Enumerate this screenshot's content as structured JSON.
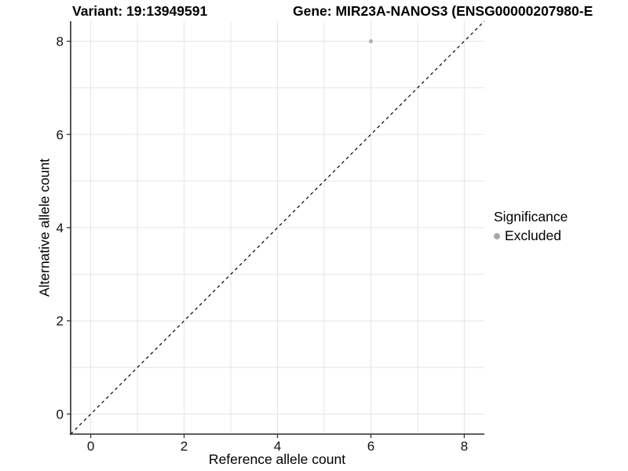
{
  "chart_data": {
    "type": "scatter",
    "title_left": "Variant: 19:13949591",
    "title_right": "Gene: MIR23A-NANOS3 (ENSG00000207980-E",
    "xlabel": "Reference allele count",
    "ylabel": "Alternative allele count",
    "xlim": [
      -0.43,
      8.43
    ],
    "ylim": [
      -0.43,
      8.43
    ],
    "x_ticks": [
      0,
      2,
      4,
      6,
      8
    ],
    "y_ticks": [
      0,
      2,
      4,
      6,
      8
    ],
    "grid": true,
    "gridline_step": 1,
    "gridline_color": "#e5e5e5",
    "axis_line_color": "#2b2b2b",
    "identity_line": {
      "style": "dashed",
      "color": "#000000",
      "from": [
        -0.43,
        -0.43
      ],
      "to": [
        8.43,
        8.43
      ]
    },
    "series": [
      {
        "name": "Excluded",
        "color": "#b2b2b2",
        "points": [
          [
            6,
            8
          ]
        ]
      }
    ],
    "legend": {
      "title": "Significance",
      "position": "right",
      "items": [
        {
          "label": "Excluded",
          "color": "#a8a8a8",
          "marker": "point-icon"
        }
      ]
    }
  }
}
